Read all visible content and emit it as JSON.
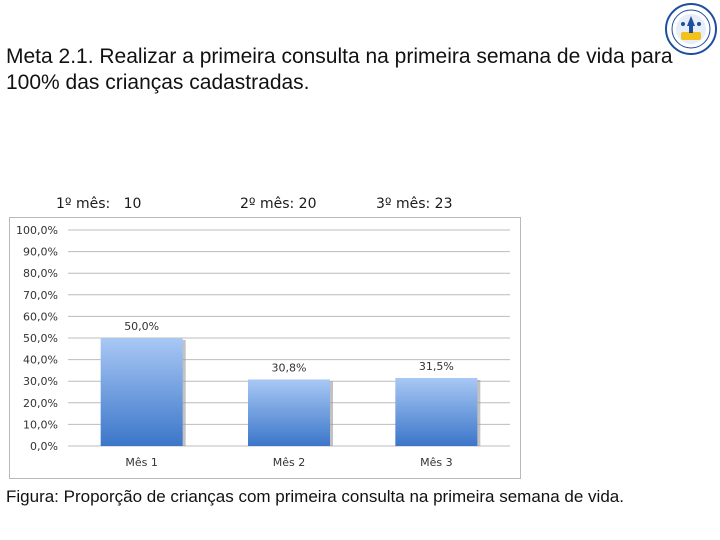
{
  "slide": {
    "title": "Meta 2.1. Realizar a primeira consulta na primeira semana de vida para 100% das crianças cadastradas.",
    "month_labels": [
      "1º mês:   10",
      "2º mês: 20",
      "3º mês: 23"
    ],
    "caption": "Figura: Proporção de crianças com primeira consulta na primeira semana de vida."
  },
  "logo": {
    "icon": "university-seal-icon",
    "colors": [
      "#1f4e9e",
      "#f2c21b"
    ]
  },
  "chart_data": {
    "type": "bar",
    "categories": [
      "Mês 1",
      "Mês 2",
      "Mês 3"
    ],
    "values": [
      50.0,
      30.8,
      31.5
    ],
    "data_labels": [
      "50,0%",
      "30,8%",
      "31,5%"
    ],
    "ylim": [
      0,
      100
    ],
    "yticks": [
      "0,0%",
      "10,0%",
      "20,0%",
      "30,0%",
      "40,0%",
      "50,0%",
      "60,0%",
      "70,0%",
      "80,0%",
      "90,0%",
      "100,0%"
    ],
    "grid": true,
    "legend": "none",
    "colors": {
      "bar_top": "#a9c8f5",
      "bar_bottom": "#3b76c9",
      "grid": "#bcbcbc"
    }
  }
}
